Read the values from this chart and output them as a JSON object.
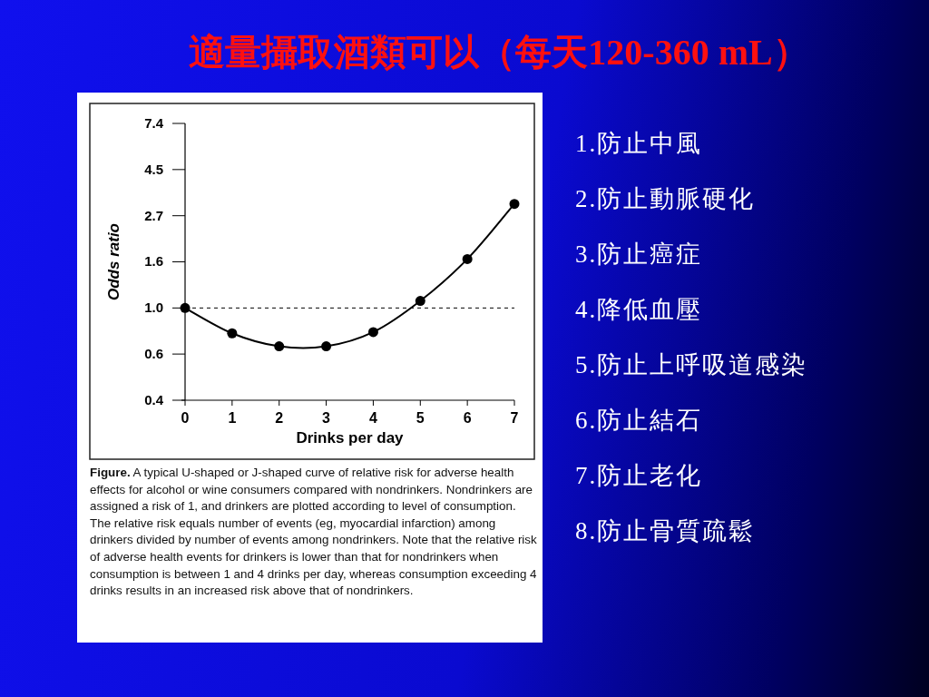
{
  "chart_data": {
    "type": "line",
    "title": "適量攝取酒類可以（每天120-360 mL）",
    "xlabel": "Drinks per day",
    "ylabel": "Odds ratio",
    "x": [
      0,
      1,
      2,
      3,
      4,
      5,
      6,
      7
    ],
    "series": [
      {
        "color": "#000000",
        "values": [
          1.0,
          0.76,
          0.66,
          0.66,
          0.77,
          1.08,
          1.7,
          3.09
        ]
      }
    ],
    "marker": "circle",
    "log": "y",
    "xlim": [
      0,
      7
    ],
    "xticks": [
      0,
      1,
      2,
      3,
      4,
      5,
      6,
      7
    ],
    "ylim": [
      0.368,
      7.389
    ],
    "yticks": [
      {
        "value": 0.368,
        "label": "0.4"
      },
      {
        "value": 0.607,
        "label": "0.6"
      },
      {
        "value": 1,
        "label": "1.0"
      },
      {
        "value": 1.649,
        "label": "1.6"
      },
      {
        "value": 2.718,
        "label": "2.7"
      },
      {
        "value": 4.482,
        "label": "4.5"
      },
      {
        "value": 7.389,
        "label": "7.4"
      }
    ],
    "ref_lines": [
      {
        "axis": "y",
        "value": 1,
        "line_style": "dashed",
        "color": "#000000"
      }
    ],
    "annotations": [
      "Figure. A typical U-shaped or J-shaped curve of relative risk for adverse health effects for alcohol or wine consumers compared with nondrinkers. Nondrinkers are assigned a risk of 1, and drinkers are plotted according to level of consumption. The relative risk equals number of events (eg, myocardial infarction) among drinkers divided by number of events among nondrinkers. Note that the relative risk of adverse health events for drinkers is lower than that for nondrinkers when consumption is between 1 and 4 drinks per day, whereas consumption exceeding 4 drinks results in an increased risk above that of nondrinkers.",
      "1.防止中風",
      "2.防止動脈硬化",
      "3.防止癌症",
      "4.降低血壓",
      "5.防止上呼吸道感染",
      "6.防止結石",
      "7.防止老化",
      "8.防止骨質疏鬆"
    ]
  }
}
